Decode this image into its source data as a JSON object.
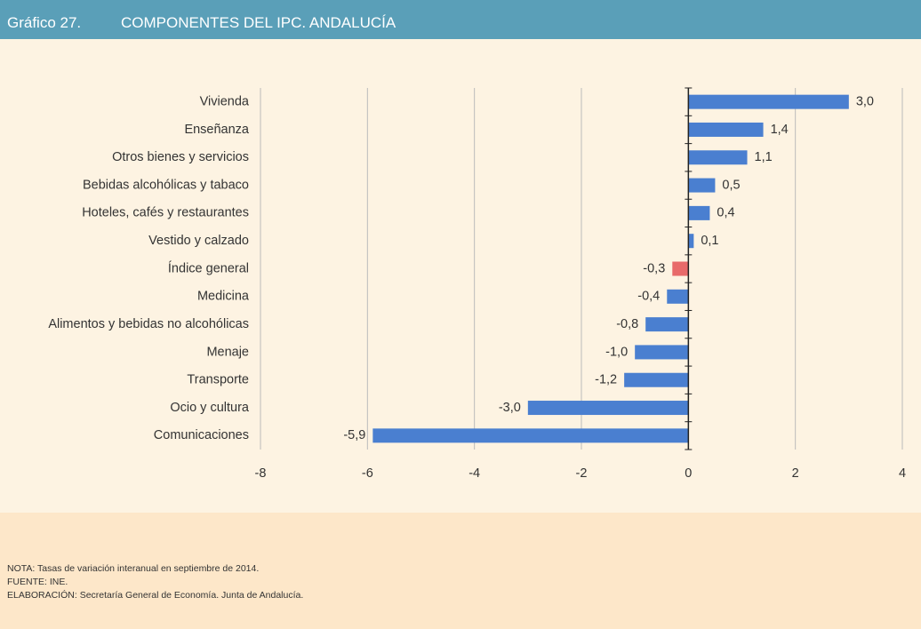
{
  "header": {
    "label": "Gráfico 27.",
    "title": "COMPONENTES DEL IPC. ANDALUCÍA"
  },
  "chart_data": {
    "type": "hbar",
    "categories": [
      "Vivienda",
      "Enseñanza",
      "Otros bienes y servicios",
      "Bebidas alcohólicas y tabaco",
      "Hoteles, cafés y restaurantes",
      "Vestido y calzado",
      "Índice general",
      "Medicina",
      "Alimentos y bebidas no alcohólicas",
      "Menaje",
      "Transporte",
      "Ocio y cultura",
      "Comunicaciones"
    ],
    "values": [
      3.0,
      1.4,
      1.1,
      0.5,
      0.4,
      0.1,
      -0.3,
      -0.4,
      -0.8,
      -1.0,
      -1.2,
      -3.0,
      -5.9
    ],
    "value_labels": [
      "3,0",
      "1,4",
      "1,1",
      "0,5",
      "0,4",
      "0,1",
      "-0,3",
      "-0,4",
      "-0,8",
      "-1,0",
      "-1,2",
      "-3,0",
      "-5,9"
    ],
    "colors": [
      "#4a7fd0",
      "#4a7fd0",
      "#4a7fd0",
      "#4a7fd0",
      "#4a7fd0",
      "#4a7fd0",
      "#e86a6a",
      "#4a7fd0",
      "#4a7fd0",
      "#4a7fd0",
      "#4a7fd0",
      "#4a7fd0",
      "#4a7fd0"
    ],
    "xlim": [
      -8,
      4
    ],
    "xticks": [
      -8,
      -6,
      -4,
      -2,
      0,
      2,
      4
    ],
    "grid": true
  },
  "notes": [
    "NOTA: Tasas de variación interanual en septiembre de 2014.",
    "FUENTE: INE.",
    "ELABORACIÓN: Secretaría General de Economía. Junta de Andalucía."
  ]
}
